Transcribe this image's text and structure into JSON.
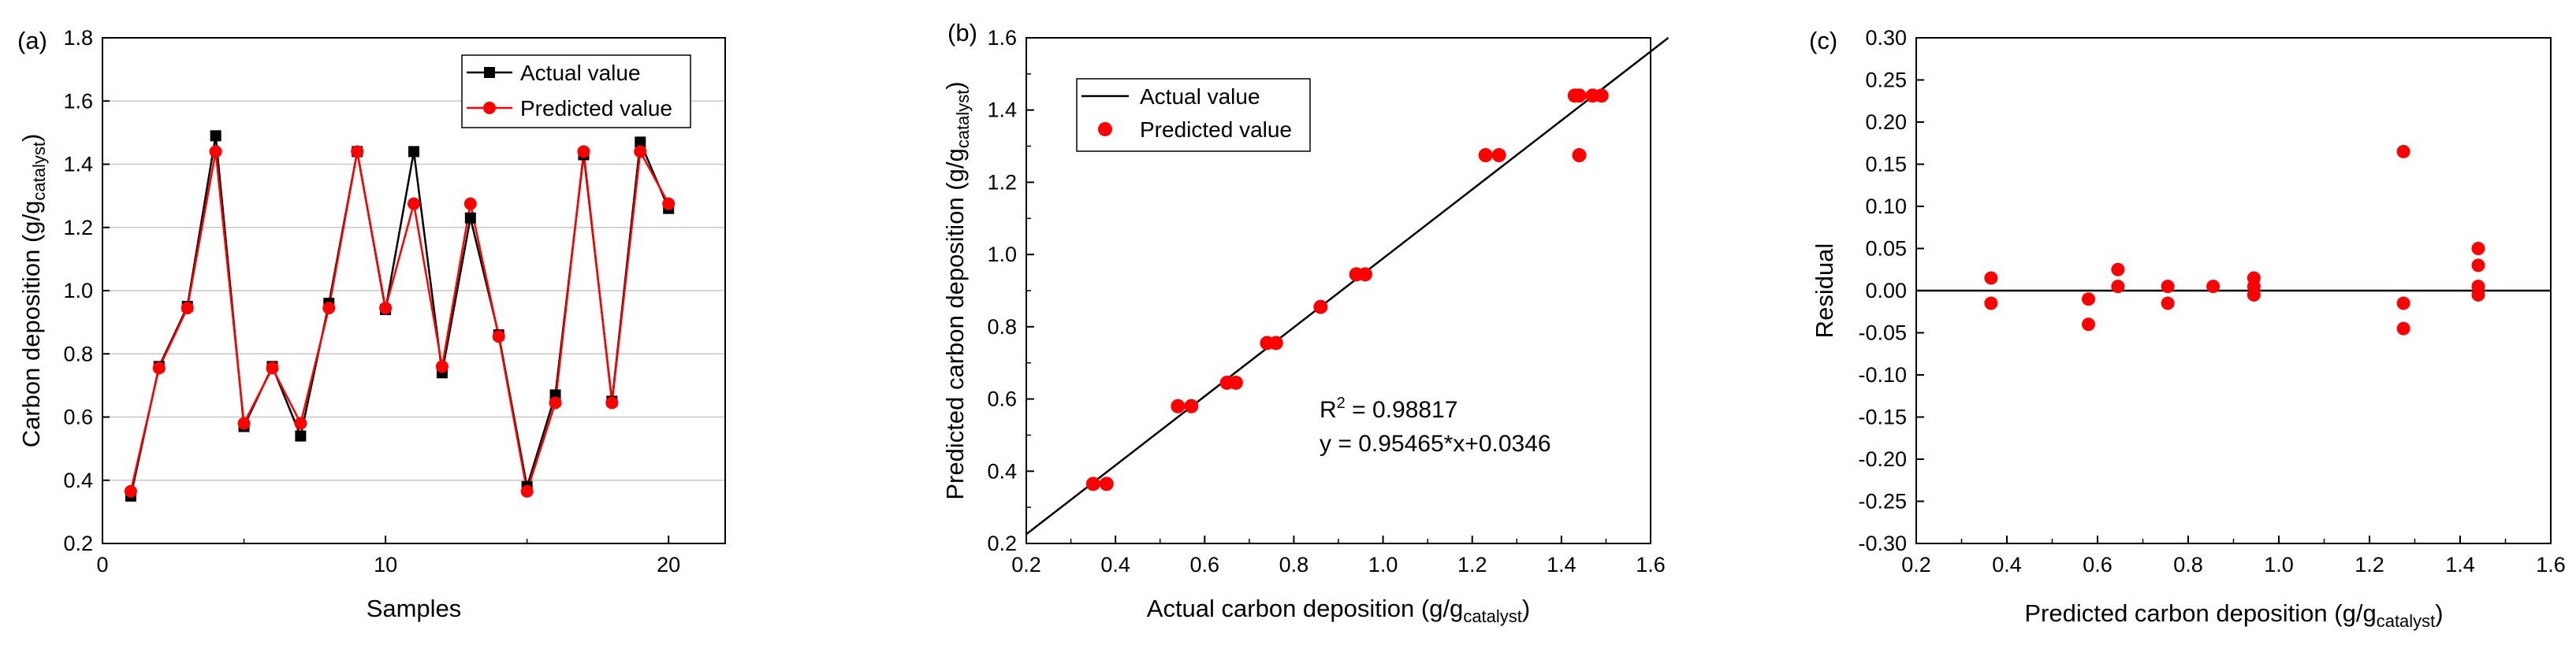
{
  "chart_data": [
    {
      "type": "line",
      "panel_label": "(a)",
      "xlabel": "Samples",
      "ylabel_main": "Carbon deposition (g/g",
      "ylabel_sub": "catalyst",
      "ylabel_close": ")",
      "xlim": [
        0,
        22
      ],
      "ylim": [
        0.2,
        1.8
      ],
      "xticks": [
        0,
        10,
        20
      ],
      "yticks": [
        "0.2",
        "0.4",
        "0.6",
        "0.8",
        "1.0",
        "1.2",
        "1.4",
        "1.6",
        "1.8"
      ],
      "grid": "horizontal",
      "legend_position": "top-right",
      "x": [
        1,
        2,
        3,
        4,
        5,
        6,
        7,
        8,
        9,
        10,
        11,
        12,
        13,
        14,
        15,
        16,
        17,
        18,
        19,
        20
      ],
      "series": [
        {
          "name": "Actual value",
          "color": "#000000",
          "marker": "square",
          "values": [
            0.35,
            0.76,
            0.95,
            1.49,
            0.57,
            0.76,
            0.54,
            0.96,
            1.44,
            0.94,
            1.44,
            0.74,
            1.23,
            0.86,
            0.38,
            0.67,
            1.43,
            0.65,
            1.47,
            1.26
          ]
        },
        {
          "name": "Predicted value",
          "color": "#ff0000",
          "marker": "circle",
          "values": [
            0.365,
            0.755,
            0.945,
            1.44,
            0.58,
            0.755,
            0.58,
            0.945,
            1.44,
            0.945,
            1.275,
            0.76,
            1.275,
            0.855,
            0.365,
            0.645,
            1.44,
            0.645,
            1.44,
            1.275
          ]
        }
      ]
    },
    {
      "type": "scatter",
      "panel_label": "(b)",
      "xlabel_main": "Actual carbon deposition (g/g",
      "xlabel_sub": "catalyst",
      "xlabel_close": ")",
      "ylabel_main": "Predicted carbon deposition (g/g",
      "ylabel_sub": "catalyst",
      "ylabel_close": ")",
      "xlim": [
        0.2,
        1.6
      ],
      "ylim": [
        0.2,
        1.6
      ],
      "xticks": [
        "0.2",
        "0.4",
        "0.6",
        "0.8",
        "1.0",
        "1.2",
        "1.4",
        "1.6"
      ],
      "yticks": [
        "0.2",
        "0.4",
        "0.6",
        "0.8",
        "1.0",
        "1.2",
        "1.4",
        "1.6"
      ],
      "grid": "none",
      "legend_position": "top-left",
      "fit_line": {
        "name": "Actual value",
        "slope": 0.95465,
        "intercept": 0.0346,
        "color": "#000000"
      },
      "points_name": "Predicted value",
      "points_color": "#ff0000",
      "points": [
        [
          0.35,
          0.365
        ],
        [
          0.38,
          0.365
        ],
        [
          0.54,
          0.58
        ],
        [
          0.57,
          0.58
        ],
        [
          0.65,
          0.645
        ],
        [
          0.67,
          0.645
        ],
        [
          0.74,
          0.755
        ],
        [
          0.76,
          0.755
        ],
        [
          0.86,
          0.855
        ],
        [
          0.94,
          0.945
        ],
        [
          0.96,
          0.945
        ],
        [
          1.23,
          1.275
        ],
        [
          1.26,
          1.275
        ],
        [
          1.43,
          1.44
        ],
        [
          1.44,
          1.44
        ],
        [
          1.44,
          1.275
        ],
        [
          1.47,
          1.44
        ],
        [
          1.49,
          1.44
        ]
      ],
      "annotation_r2_label": "R",
      "annotation_r2_sup": "2",
      "annotation_r2_value": " = 0.98817",
      "annotation_eq": "y = 0.95465*x+0.0346"
    },
    {
      "type": "scatter",
      "panel_label": "(c)",
      "xlabel_main": "Predicted carbon deposition (g/g",
      "xlabel_sub": "catalyst",
      "xlabel_close": ")",
      "ylabel": "Residual",
      "xlim": [
        0.2,
        1.6
      ],
      "ylim": [
        -0.3,
        0.3
      ],
      "xticks": [
        "0.2",
        "0.4",
        "0.6",
        "0.8",
        "1.0",
        "1.2",
        "1.4",
        "1.6"
      ],
      "yticks": [
        "0.30",
        "0.25",
        "0.20",
        "0.15",
        "0.10",
        "0.05",
        "0.00",
        "-0.05",
        "-0.10",
        "-0.15",
        "-0.20",
        "-0.25",
        "-0.30"
      ],
      "grid": "none",
      "zero_line": 0,
      "points_color": "#ff0000",
      "points": [
        [
          0.365,
          0.015
        ],
        [
          0.365,
          -0.015
        ],
        [
          0.58,
          -0.01
        ],
        [
          0.58,
          -0.04
        ],
        [
          0.645,
          0.025
        ],
        [
          0.645,
          0.005
        ],
        [
          0.755,
          0.005
        ],
        [
          0.755,
          -0.015
        ],
        [
          0.855,
          0.005
        ],
        [
          0.945,
          0.015
        ],
        [
          0.945,
          0.005
        ],
        [
          0.945,
          -0.005
        ],
        [
          1.275,
          0.165
        ],
        [
          1.275,
          -0.015
        ],
        [
          1.275,
          -0.045
        ],
        [
          1.44,
          0.05
        ],
        [
          1.44,
          0.03
        ],
        [
          1.44,
          0.005
        ],
        [
          1.44,
          -0.005
        ]
      ]
    }
  ]
}
